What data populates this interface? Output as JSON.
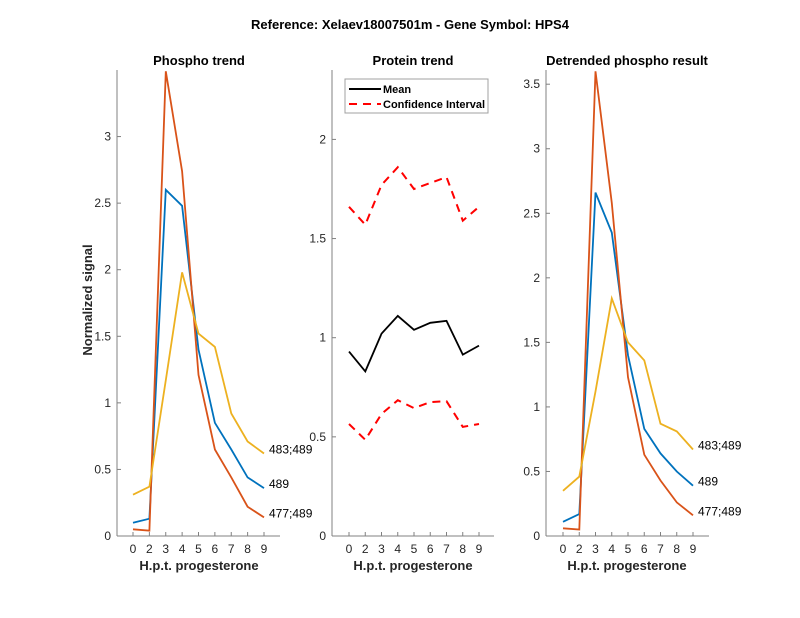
{
  "figure": {
    "suptitle": "Reference:  Xelaev18007501m - Gene Symbol:  HPS4"
  },
  "chart_data": [
    {
      "id": "phospho",
      "type": "line",
      "title": "Phospho trend",
      "xlabel": "H.p.t. progesterone",
      "ylabel": "Normalized signal",
      "categories": [
        "0",
        "2",
        "3",
        "4",
        "5",
        "6",
        "7",
        "8",
        "9"
      ],
      "ylim": [
        0,
        3.5
      ],
      "yticks": [
        0,
        0.5,
        1,
        1.5,
        2,
        2.5,
        3
      ],
      "ytick_labels": [
        "0",
        "0.5",
        "1",
        "1.5",
        "2",
        "2.5",
        "3"
      ],
      "grid": false,
      "series": [
        {
          "name": "489",
          "color": "#0072BD",
          "dashed": false,
          "label": "489",
          "values": [
            0.1,
            0.13,
            2.6,
            2.48,
            1.4,
            0.85,
            0.65,
            0.44,
            0.36
          ]
        },
        {
          "name": "477;489",
          "color": "#D95319",
          "dashed": false,
          "label": "477;489",
          "values": [
            0.05,
            0.04,
            3.49,
            2.74,
            1.21,
            0.65,
            0.44,
            0.22,
            0.14
          ]
        },
        {
          "name": "483;489",
          "color": "#EDB120",
          "dashed": false,
          "label": "483;489",
          "values": [
            0.31,
            0.37,
            1.17,
            1.98,
            1.52,
            1.42,
            0.92,
            0.71,
            0.62
          ]
        }
      ]
    },
    {
      "id": "protein",
      "type": "line",
      "title": "Protein trend",
      "xlabel": "H.p.t. progesterone",
      "ylabel": "",
      "categories": [
        "0",
        "2",
        "3",
        "4",
        "5",
        "6",
        "7",
        "8",
        "9"
      ],
      "ylim": [
        0,
        2.35
      ],
      "yticks": [
        0,
        0.5,
        1,
        1.5,
        2
      ],
      "ytick_labels": [
        "0",
        "0.5",
        "1",
        "1.5",
        "2"
      ],
      "grid": false,
      "legend": {
        "position": "top-left",
        "entries": [
          "Mean",
          "Confidence Interval"
        ]
      },
      "series": [
        {
          "name": "Mean",
          "color": "#000000",
          "dashed": false,
          "values": [
            0.93,
            0.83,
            1.02,
            1.11,
            1.04,
            1.075,
            1.085,
            0.915,
            0.96
          ]
        },
        {
          "name": "Confidence Interval (upper)",
          "color": "#FF0000",
          "dashed": true,
          "values": [
            1.66,
            1.57,
            1.77,
            1.86,
            1.75,
            1.78,
            1.81,
            1.59,
            1.66
          ]
        },
        {
          "name": "Confidence Interval (lower)",
          "color": "#FF0000",
          "dashed": true,
          "values": [
            0.565,
            0.485,
            0.615,
            0.685,
            0.645,
            0.675,
            0.68,
            0.55,
            0.565
          ]
        }
      ]
    },
    {
      "id": "detrended",
      "type": "line",
      "title": "Detrended phospho result",
      "xlabel": "H.p.t. progesterone",
      "ylabel": "",
      "categories": [
        "0",
        "2",
        "3",
        "4",
        "5",
        "6",
        "7",
        "8",
        "9"
      ],
      "ylim": [
        0,
        3.61
      ],
      "yticks": [
        0,
        0.5,
        1,
        1.5,
        2,
        2.5,
        3,
        3.5
      ],
      "ytick_labels": [
        "0",
        "0.5",
        "1",
        "1.5",
        "2",
        "2.5",
        "3",
        "3.5"
      ],
      "grid": false,
      "series": [
        {
          "name": "489",
          "color": "#0072BD",
          "dashed": false,
          "label": "489",
          "values": [
            0.11,
            0.17,
            2.66,
            2.35,
            1.4,
            0.83,
            0.64,
            0.5,
            0.39
          ]
        },
        {
          "name": "477;489",
          "color": "#D95319",
          "dashed": false,
          "label": "477;489",
          "values": [
            0.06,
            0.05,
            3.6,
            2.58,
            1.23,
            0.63,
            0.43,
            0.26,
            0.16
          ]
        },
        {
          "name": "483;489",
          "color": "#EDB120",
          "dashed": false,
          "label": "483;489",
          "values": [
            0.35,
            0.46,
            1.12,
            1.84,
            1.5,
            1.36,
            0.87,
            0.81,
            0.67
          ]
        }
      ]
    }
  ]
}
